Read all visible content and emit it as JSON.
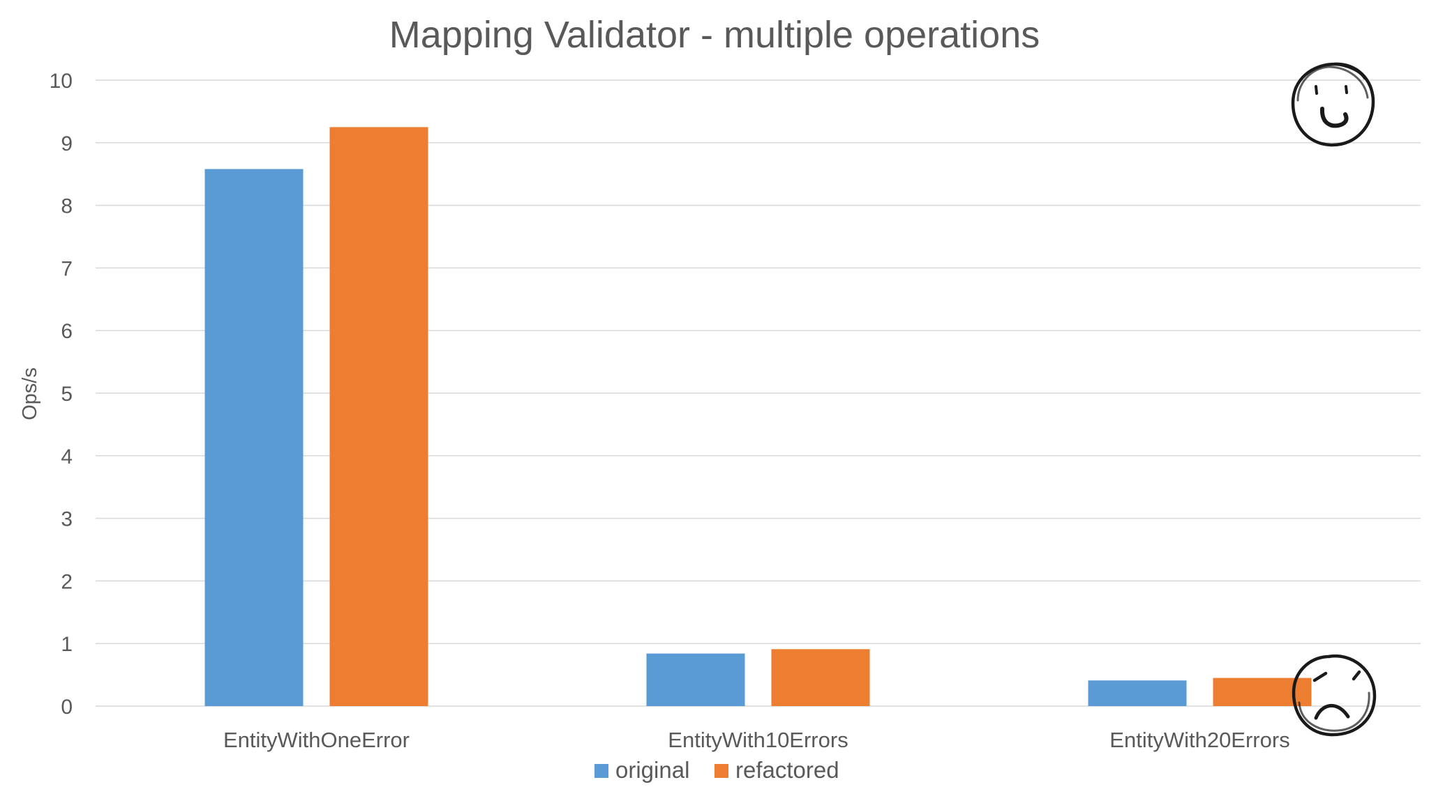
{
  "chart_data": {
    "type": "bar",
    "title": "Mapping Validator - multiple operations",
    "ylabel": "Ops/s",
    "xlabel": "",
    "ylim": [
      0,
      10
    ],
    "yticks": [
      0,
      1,
      2,
      3,
      4,
      5,
      6,
      7,
      8,
      9,
      10
    ],
    "grid": true,
    "legend_position": "bottom",
    "categories": [
      "EntityWithOneError",
      "EntityWith10Errors",
      "EntityWith20Errors"
    ],
    "series": [
      {
        "name": "original",
        "color": "#5b9bd5",
        "values": [
          8.58,
          0.84,
          0.41
        ]
      },
      {
        "name": "refactored",
        "color": "#ed7d31",
        "values": [
          9.25,
          0.91,
          0.45
        ]
      }
    ],
    "annotations": [
      {
        "kind": "smiley-face-icon",
        "mood": "happy",
        "position": "top-right"
      },
      {
        "kind": "frowning-face-icon",
        "mood": "sad",
        "position": "bottom-right"
      }
    ]
  }
}
